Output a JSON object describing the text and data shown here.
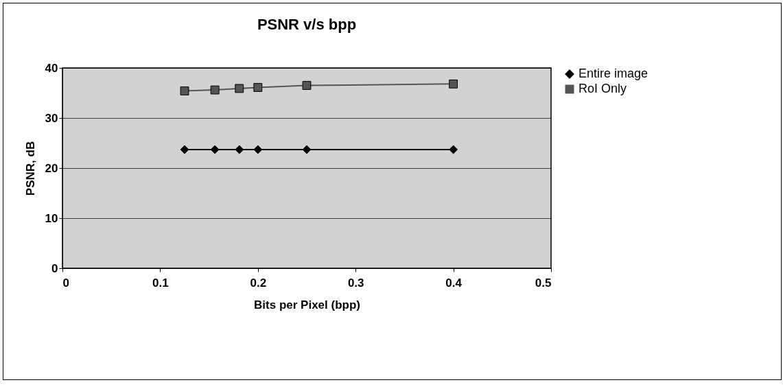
{
  "chart_data": {
    "type": "line",
    "title": "PSNR v/s bpp",
    "xlabel": "Bits per Pixel (bpp)",
    "ylabel": "PSNR, dB",
    "x": [
      0.125,
      0.156,
      0.181,
      0.2,
      0.25,
      0.4
    ],
    "series": [
      {
        "name": "Entire image",
        "color": "#000000",
        "marker": "diamond",
        "values": [
          23.7,
          23.7,
          23.7,
          23.7,
          23.7,
          23.7
        ]
      },
      {
        "name": "RoI Only",
        "color": "#555555",
        "marker": "square",
        "values": [
          35.4,
          35.6,
          35.9,
          36.1,
          36.5,
          36.8
        ]
      }
    ],
    "xlim": [
      0,
      0.5
    ],
    "xticks": [
      0,
      0.1,
      0.2,
      0.3,
      0.4,
      0.5
    ],
    "ylim": [
      0,
      40
    ],
    "yticks": [
      0,
      10,
      20,
      30,
      40
    ],
    "grid": "y",
    "legend": "right",
    "line_style": "solid"
  }
}
